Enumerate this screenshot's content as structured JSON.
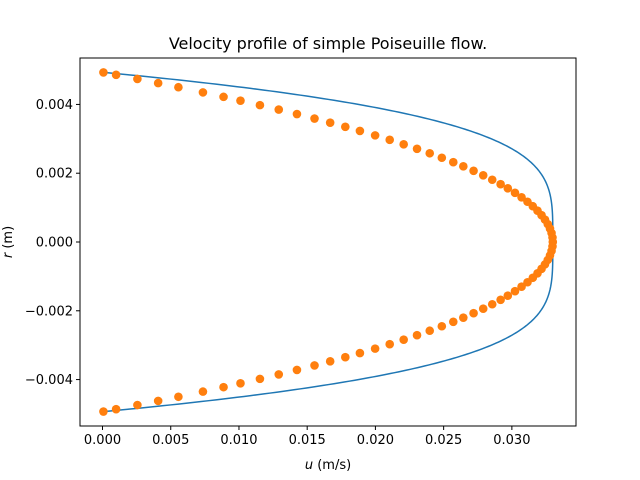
{
  "chart_data": {
    "type": "line",
    "title": "Velocity profile of simple Poiseuille flow.",
    "xlabel_var": "u",
    "xlabel_unit": " (m/s)",
    "ylabel_var": "r",
    "ylabel_unit": " (m)",
    "xlim": [
      -0.00165,
      0.0347
    ],
    "ylim": [
      -0.00535,
      0.00535
    ],
    "xticks": [
      0.0,
      0.005,
      0.01,
      0.015,
      0.02,
      0.025,
      0.03
    ],
    "xtick_labels": [
      "0.000",
      "0.005",
      "0.010",
      "0.015",
      "0.020",
      "0.025",
      "0.030"
    ],
    "yticks": [
      -0.004,
      -0.002,
      0.0,
      0.002,
      0.004
    ],
    "ytick_labels": [
      "−0.004",
      "−0.002",
      "0.000",
      "0.002",
      "0.004"
    ],
    "grid": false,
    "series": [
      {
        "kind": "line",
        "color": "#1f77b4",
        "u_max": 0.033,
        "radius": 0.004935,
        "profile_exponent": 4
      },
      {
        "kind": "scatter",
        "color": "#ff7f0e",
        "u_max": 0.033,
        "radius": 0.004935,
        "profile_exponent": 2,
        "r": [
          0.00493,
          0.00486,
          0.00474,
          0.00462,
          0.0045,
          0.00435,
          0.00422,
          0.00411,
          0.00398,
          0.00385,
          0.00372,
          0.00359,
          0.00347,
          0.00335,
          0.00323,
          0.0031,
          0.00297,
          0.00284,
          0.00271,
          0.00258,
          0.00245,
          0.00232,
          0.0022,
          0.00207,
          0.00194,
          0.00181,
          0.00168,
          0.00156,
          0.00143,
          0.0013,
          0.00117,
          0.00104,
          0.00091,
          0.00078,
          0.00065,
          0.00052,
          0.00039,
          0.00026,
          0.00013,
          0.0,
          -0.00013,
          -0.00026,
          -0.00039,
          -0.00052,
          -0.00065,
          -0.00078,
          -0.00091,
          -0.00104,
          -0.00117,
          -0.0013,
          -0.00143,
          -0.00156,
          -0.00168,
          -0.00181,
          -0.00194,
          -0.00207,
          -0.0022,
          -0.00232,
          -0.00245,
          -0.00258,
          -0.00271,
          -0.00284,
          -0.00297,
          -0.0031,
          -0.00323,
          -0.00335,
          -0.00347,
          -0.00359,
          -0.00372,
          -0.00385,
          -0.00398,
          -0.00411,
          -0.00422,
          -0.00435,
          -0.0045,
          -0.00462,
          -0.00474,
          -0.00486,
          -0.00493
        ]
      }
    ]
  }
}
